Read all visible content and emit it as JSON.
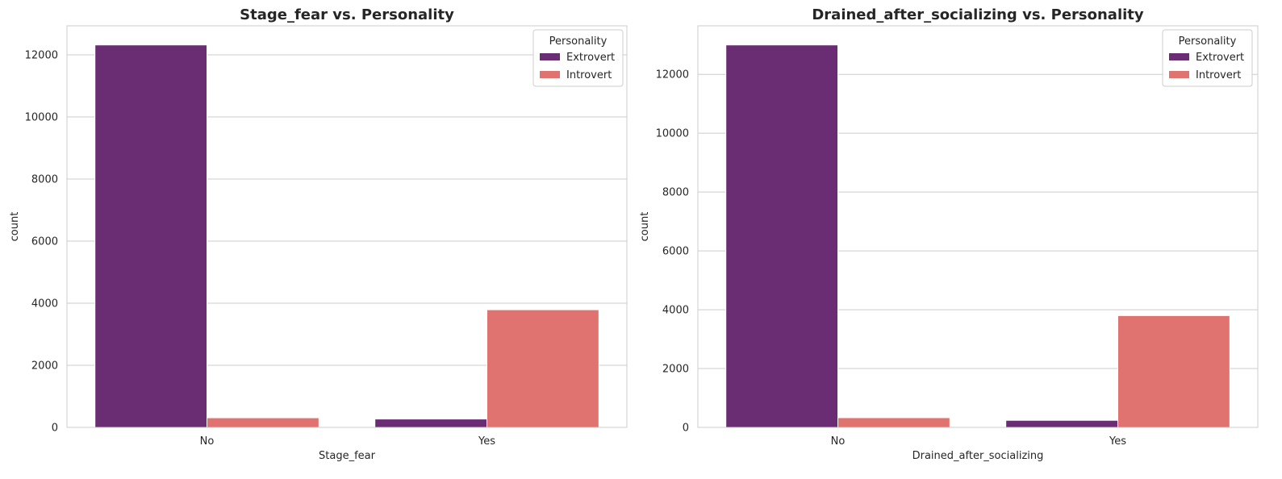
{
  "chart_data": [
    {
      "type": "bar",
      "title": "Stage_fear vs. Personality",
      "xlabel": "Stage_fear",
      "ylabel": "count",
      "categories": [
        "No",
        "Yes"
      ],
      "series": [
        {
          "name": "Extrovert",
          "values": [
            12320,
            270
          ]
        },
        {
          "name": "Introvert",
          "values": [
            310,
            3790
          ]
        }
      ],
      "yticks": [
        0,
        2000,
        4000,
        6000,
        8000,
        10000,
        12000
      ],
      "ylim": [
        0,
        12936
      ],
      "grid": true,
      "legend": {
        "title": "Personality",
        "position": "top-right"
      }
    },
    {
      "type": "bar",
      "title": "Drained_after_socializing vs. Personality",
      "xlabel": "Drained_after_socializing",
      "ylabel": "count",
      "categories": [
        "No",
        "Yes"
      ],
      "series": [
        {
          "name": "Extrovert",
          "values": [
            13000,
            240
          ]
        },
        {
          "name": "Introvert",
          "values": [
            330,
            3800
          ]
        }
      ],
      "yticks": [
        0,
        2000,
        4000,
        6000,
        8000,
        10000,
        12000
      ],
      "ylim": [
        0,
        13650
      ],
      "grid": true,
      "legend": {
        "title": "Personality",
        "position": "top-right"
      }
    }
  ],
  "colors": {
    "Extrovert": "#6a2c73",
    "Introvert": "#e0726f",
    "grid": "#cccccc",
    "spine": "#cccccc"
  }
}
